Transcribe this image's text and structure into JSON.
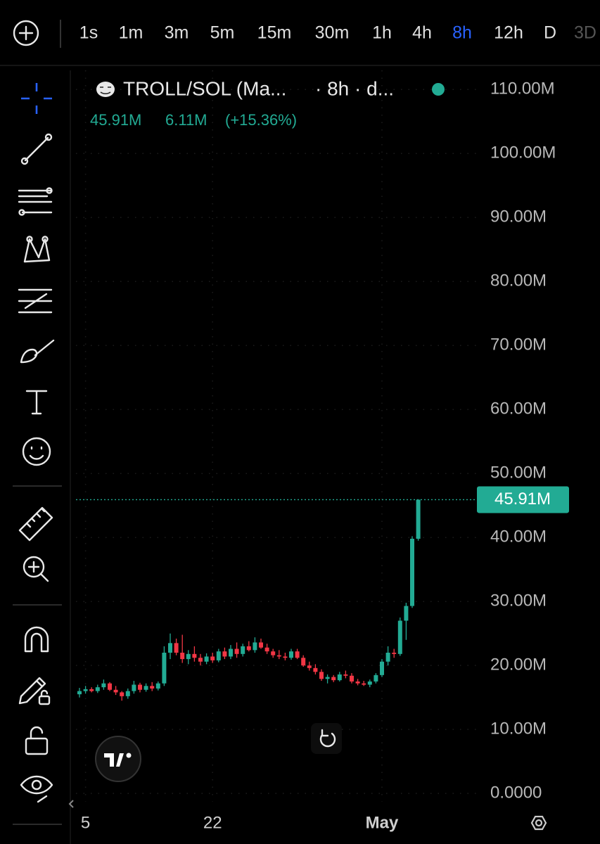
{
  "toolbar": {
    "intervals": [
      "1s",
      "1m",
      "3m",
      "5m",
      "15m",
      "30m",
      "1h",
      "4h",
      "8h",
      "12h",
      "D",
      "3D"
    ],
    "active": 8
  },
  "chart_data": {
    "type": "candlestick",
    "header": {
      "symbol": "TROLL/SOL (Ma...",
      "interval": "· 8h · d...",
      "last": "45.91M",
      "change": "6.11M",
      "change_pct": "(+15.36%)"
    },
    "categories": [
      null,
      "5",
      null,
      null,
      null,
      null,
      null,
      null,
      null,
      null,
      null,
      null,
      null,
      null,
      null,
      null,
      null,
      null,
      null,
      null,
      null,
      null,
      "22",
      null,
      null,
      null,
      null,
      null,
      null,
      null,
      null,
      null,
      null,
      null,
      null,
      null,
      null,
      null,
      null,
      null,
      null,
      null,
      null,
      null,
      null,
      null,
      null,
      null,
      null,
      null,
      "May",
      null,
      null,
      null,
      null,
      null,
      null
    ],
    "open": [
      15.5,
      16.0,
      16.3,
      16.0,
      16.6,
      17.2,
      16.2,
      15.8,
      15.2,
      16.0,
      17.0,
      16.2,
      16.8,
      16.4,
      17.2,
      22.0,
      23.5,
      22.0,
      21.0,
      21.8,
      21.2,
      20.6,
      21.4,
      20.8,
      22.2,
      21.4,
      22.6,
      21.8,
      23.0,
      22.4,
      23.6,
      22.8,
      22.2,
      21.6,
      21.4,
      21.2,
      22.2,
      21.2,
      20.0,
      19.6,
      19.0,
      17.9,
      18.2,
      17.7,
      18.6,
      18.4,
      17.5,
      17.2,
      17.0,
      17.5,
      18.5,
      20.6,
      22.0,
      21.8,
      27.0,
      29.3,
      39.8
    ],
    "high": [
      16.5,
      16.8,
      16.6,
      17.0,
      17.8,
      17.4,
      16.8,
      16.0,
      16.4,
      17.6,
      17.3,
      17.2,
      17.4,
      17.5,
      23.0,
      25.0,
      24.2,
      24.8,
      22.4,
      23.0,
      21.8,
      21.9,
      22.0,
      22.6,
      22.8,
      23.2,
      23.6,
      23.4,
      23.8,
      24.4,
      24.2,
      23.4,
      22.6,
      22.4,
      22.0,
      22.6,
      22.6,
      21.6,
      20.6,
      20.2,
      19.4,
      18.6,
      18.5,
      19.0,
      19.2,
      18.8,
      17.9,
      17.6,
      17.8,
      18.8,
      21.0,
      23.0,
      22.6,
      27.5,
      29.8,
      40.2,
      45.91
    ],
    "low": [
      15.0,
      15.6,
      15.8,
      15.7,
      16.2,
      16.0,
      15.4,
      14.5,
      14.8,
      15.6,
      15.8,
      15.9,
      16.0,
      16.1,
      16.8,
      21.0,
      21.6,
      20.4,
      20.2,
      20.6,
      20.0,
      20.2,
      20.4,
      20.5,
      21.0,
      21.0,
      21.2,
      21.4,
      22.2,
      22.0,
      22.6,
      21.8,
      21.2,
      21.0,
      20.8,
      20.9,
      21.0,
      19.8,
      19.2,
      18.6,
      17.6,
      17.2,
      17.4,
      17.5,
      18.0,
      17.2,
      16.9,
      16.8,
      16.6,
      17.2,
      18.2,
      20.0,
      21.2,
      21.5,
      24.0,
      29.0,
      39.5
    ],
    "close": [
      16.0,
      16.3,
      16.0,
      16.6,
      17.2,
      16.2,
      15.8,
      15.2,
      16.0,
      17.0,
      16.2,
      16.8,
      16.4,
      17.2,
      22.0,
      23.5,
      22.0,
      21.0,
      21.8,
      21.2,
      20.6,
      21.4,
      20.8,
      22.2,
      21.4,
      22.6,
      21.8,
      23.0,
      22.4,
      23.6,
      22.8,
      22.2,
      21.6,
      21.4,
      21.2,
      22.2,
      21.2,
      20.0,
      19.6,
      19.0,
      17.9,
      18.2,
      17.7,
      18.6,
      18.4,
      17.5,
      17.2,
      17.0,
      17.5,
      18.5,
      20.6,
      22.0,
      21.8,
      27.0,
      29.3,
      39.8,
      45.91
    ],
    "up_color": "#22ab94",
    "down_color": "#f23645",
    "last_price": {
      "value": 45.91,
      "label": "45.91M"
    },
    "ylim": [
      -2.4,
      113
    ],
    "yticks": [
      {
        "value": 0,
        "label": "0.0000"
      },
      {
        "value": 10,
        "label": "10.00M"
      },
      {
        "value": 20,
        "label": "20.00M"
      },
      {
        "value": 30,
        "label": "30.00M"
      },
      {
        "value": 40,
        "label": "40.00M"
      },
      {
        "value": 50,
        "label": "50.00M"
      },
      {
        "value": 60,
        "label": "60.00M"
      },
      {
        "value": 70,
        "label": "70.00M"
      },
      {
        "value": 80,
        "label": "80.00M"
      },
      {
        "value": 90,
        "label": "90.00M"
      },
      {
        "value": 100,
        "label": "100.00M"
      },
      {
        "value": 110,
        "label": "110.00M"
      }
    ],
    "grid": true
  }
}
